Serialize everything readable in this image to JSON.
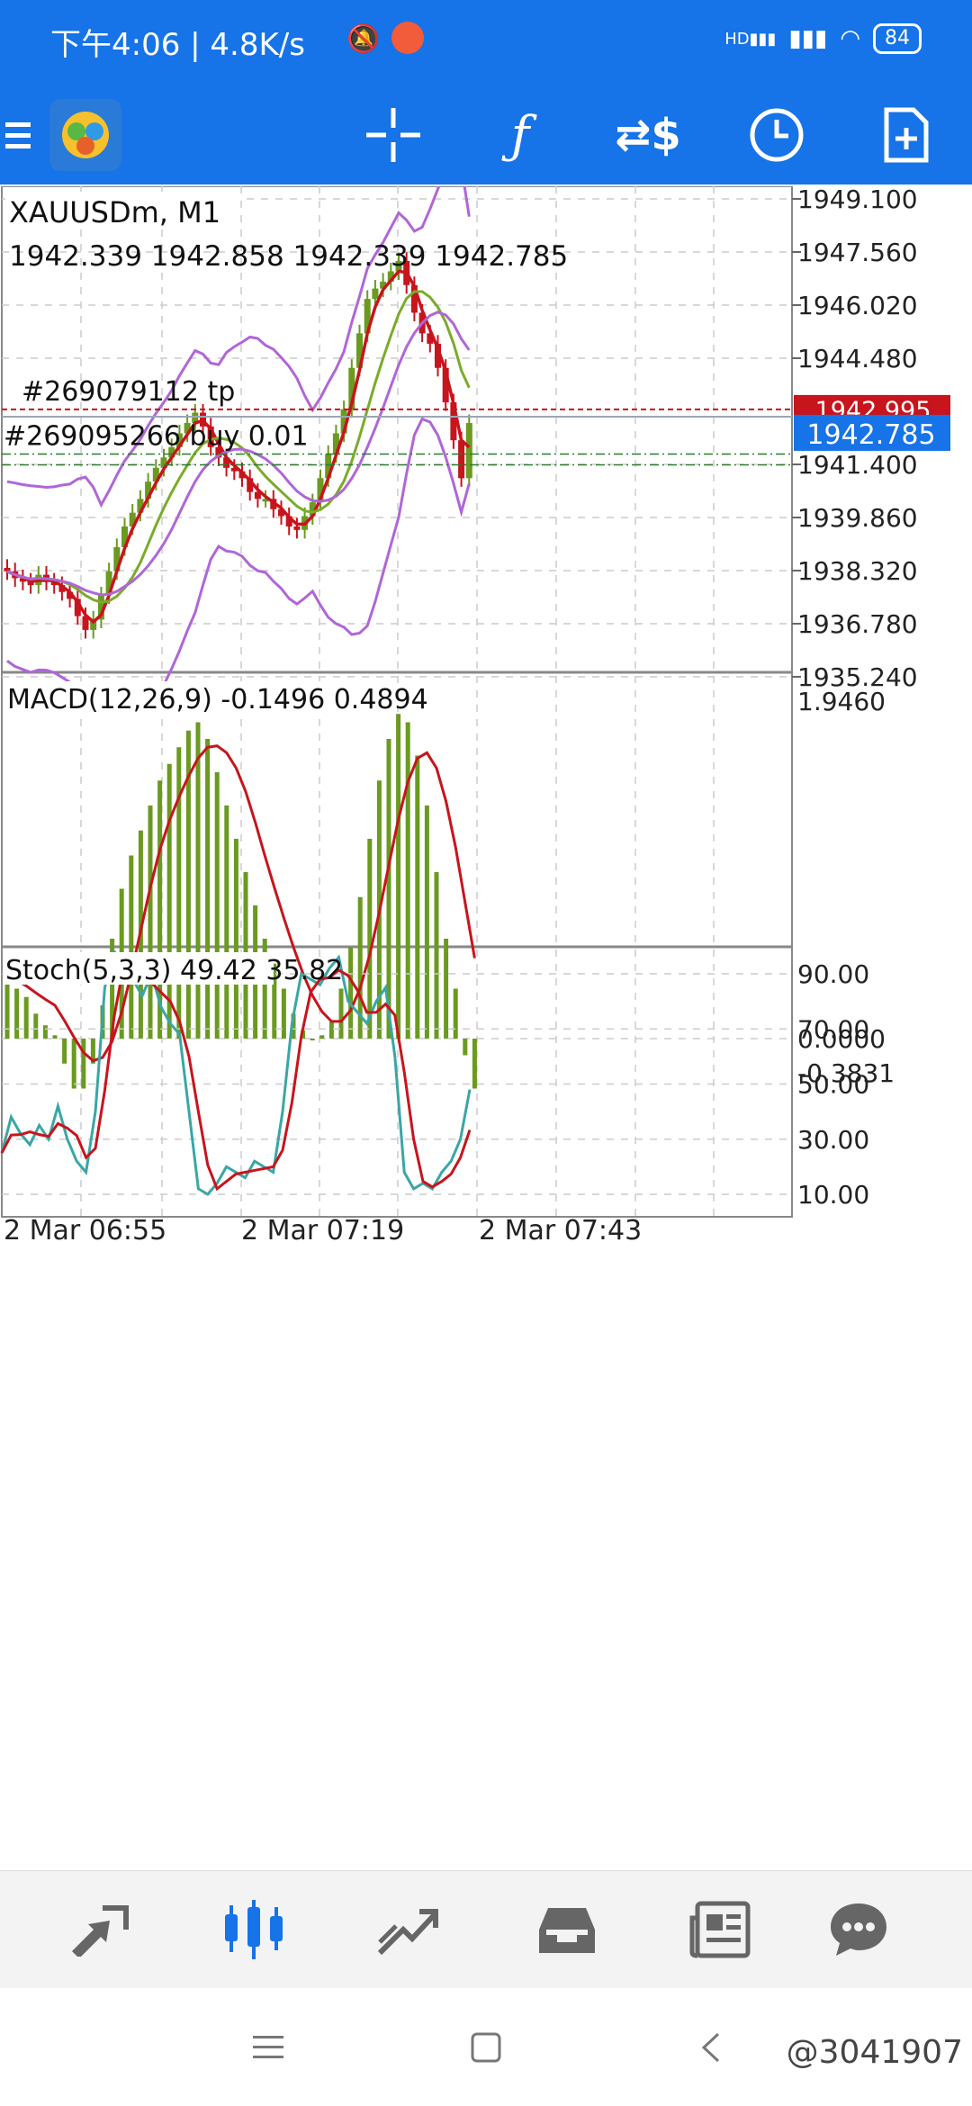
{
  "statusbar": {
    "time_info": "下午4:06 | 4.8K/s",
    "battery": "84",
    "network": "HD"
  },
  "toolbar": {
    "menu_icon": "hamburger-menu-icon",
    "app_icon": "metatrader-logo-icon",
    "icons": [
      "crosshair-icon",
      "indicators-icon",
      "symbol-change-icon",
      "timeframe-clock-icon",
      "new-order-icon"
    ]
  },
  "chart": {
    "symbol_label": "XAUUSDm, M1",
    "ohlc_label": "1942.339 1942.858 1942.339 1942.785",
    "tp_label": "#269079112 tp",
    "buy_label": "#269095266 buy 0.01",
    "current_price": "1942.785",
    "covered_price_label": "1942.995",
    "price_ticks": [
      "1949.100",
      "1947.560",
      "1946.020",
      "1944.480",
      "1941.400",
      "1939.860",
      "1938.320",
      "1936.780",
      "1935.240"
    ],
    "macd_label": "MACD(12,26,9) -0.1496 0.4894",
    "macd_ticks": [
      "1.9460",
      "0.0000",
      "-0.3831"
    ],
    "stoch_label": "Stoch(5,3,3) 49.42 35.82",
    "stoch_ticks": [
      "90.00",
      "70.00",
      "50.00",
      "30.00",
      "10.00"
    ],
    "time_ticks": [
      "2 Mar 06:55",
      "2 Mar 07:19",
      "2 Mar 07:43"
    ],
    "colors": {
      "bull": "#6a9a1f",
      "bear": "#c8141c",
      "bands": "#b066d8",
      "red_ma": "#c8141c",
      "green_ma": "#7bab2a",
      "stoch_main": "#3aa6a6",
      "stoch_signal": "#c8141c",
      "price_box": "#1673e8",
      "tp_line": "#c8141c"
    }
  },
  "bottomnav": {
    "icons": [
      "quotes-icon",
      "chart-icon",
      "trade-icon",
      "history-icon",
      "news-icon",
      "chat-icon"
    ],
    "active": "chart-icon"
  },
  "sysnav": {
    "icons": [
      "menu-icon",
      "home-icon",
      "back-icon"
    ]
  },
  "watermark": "@3041907"
}
